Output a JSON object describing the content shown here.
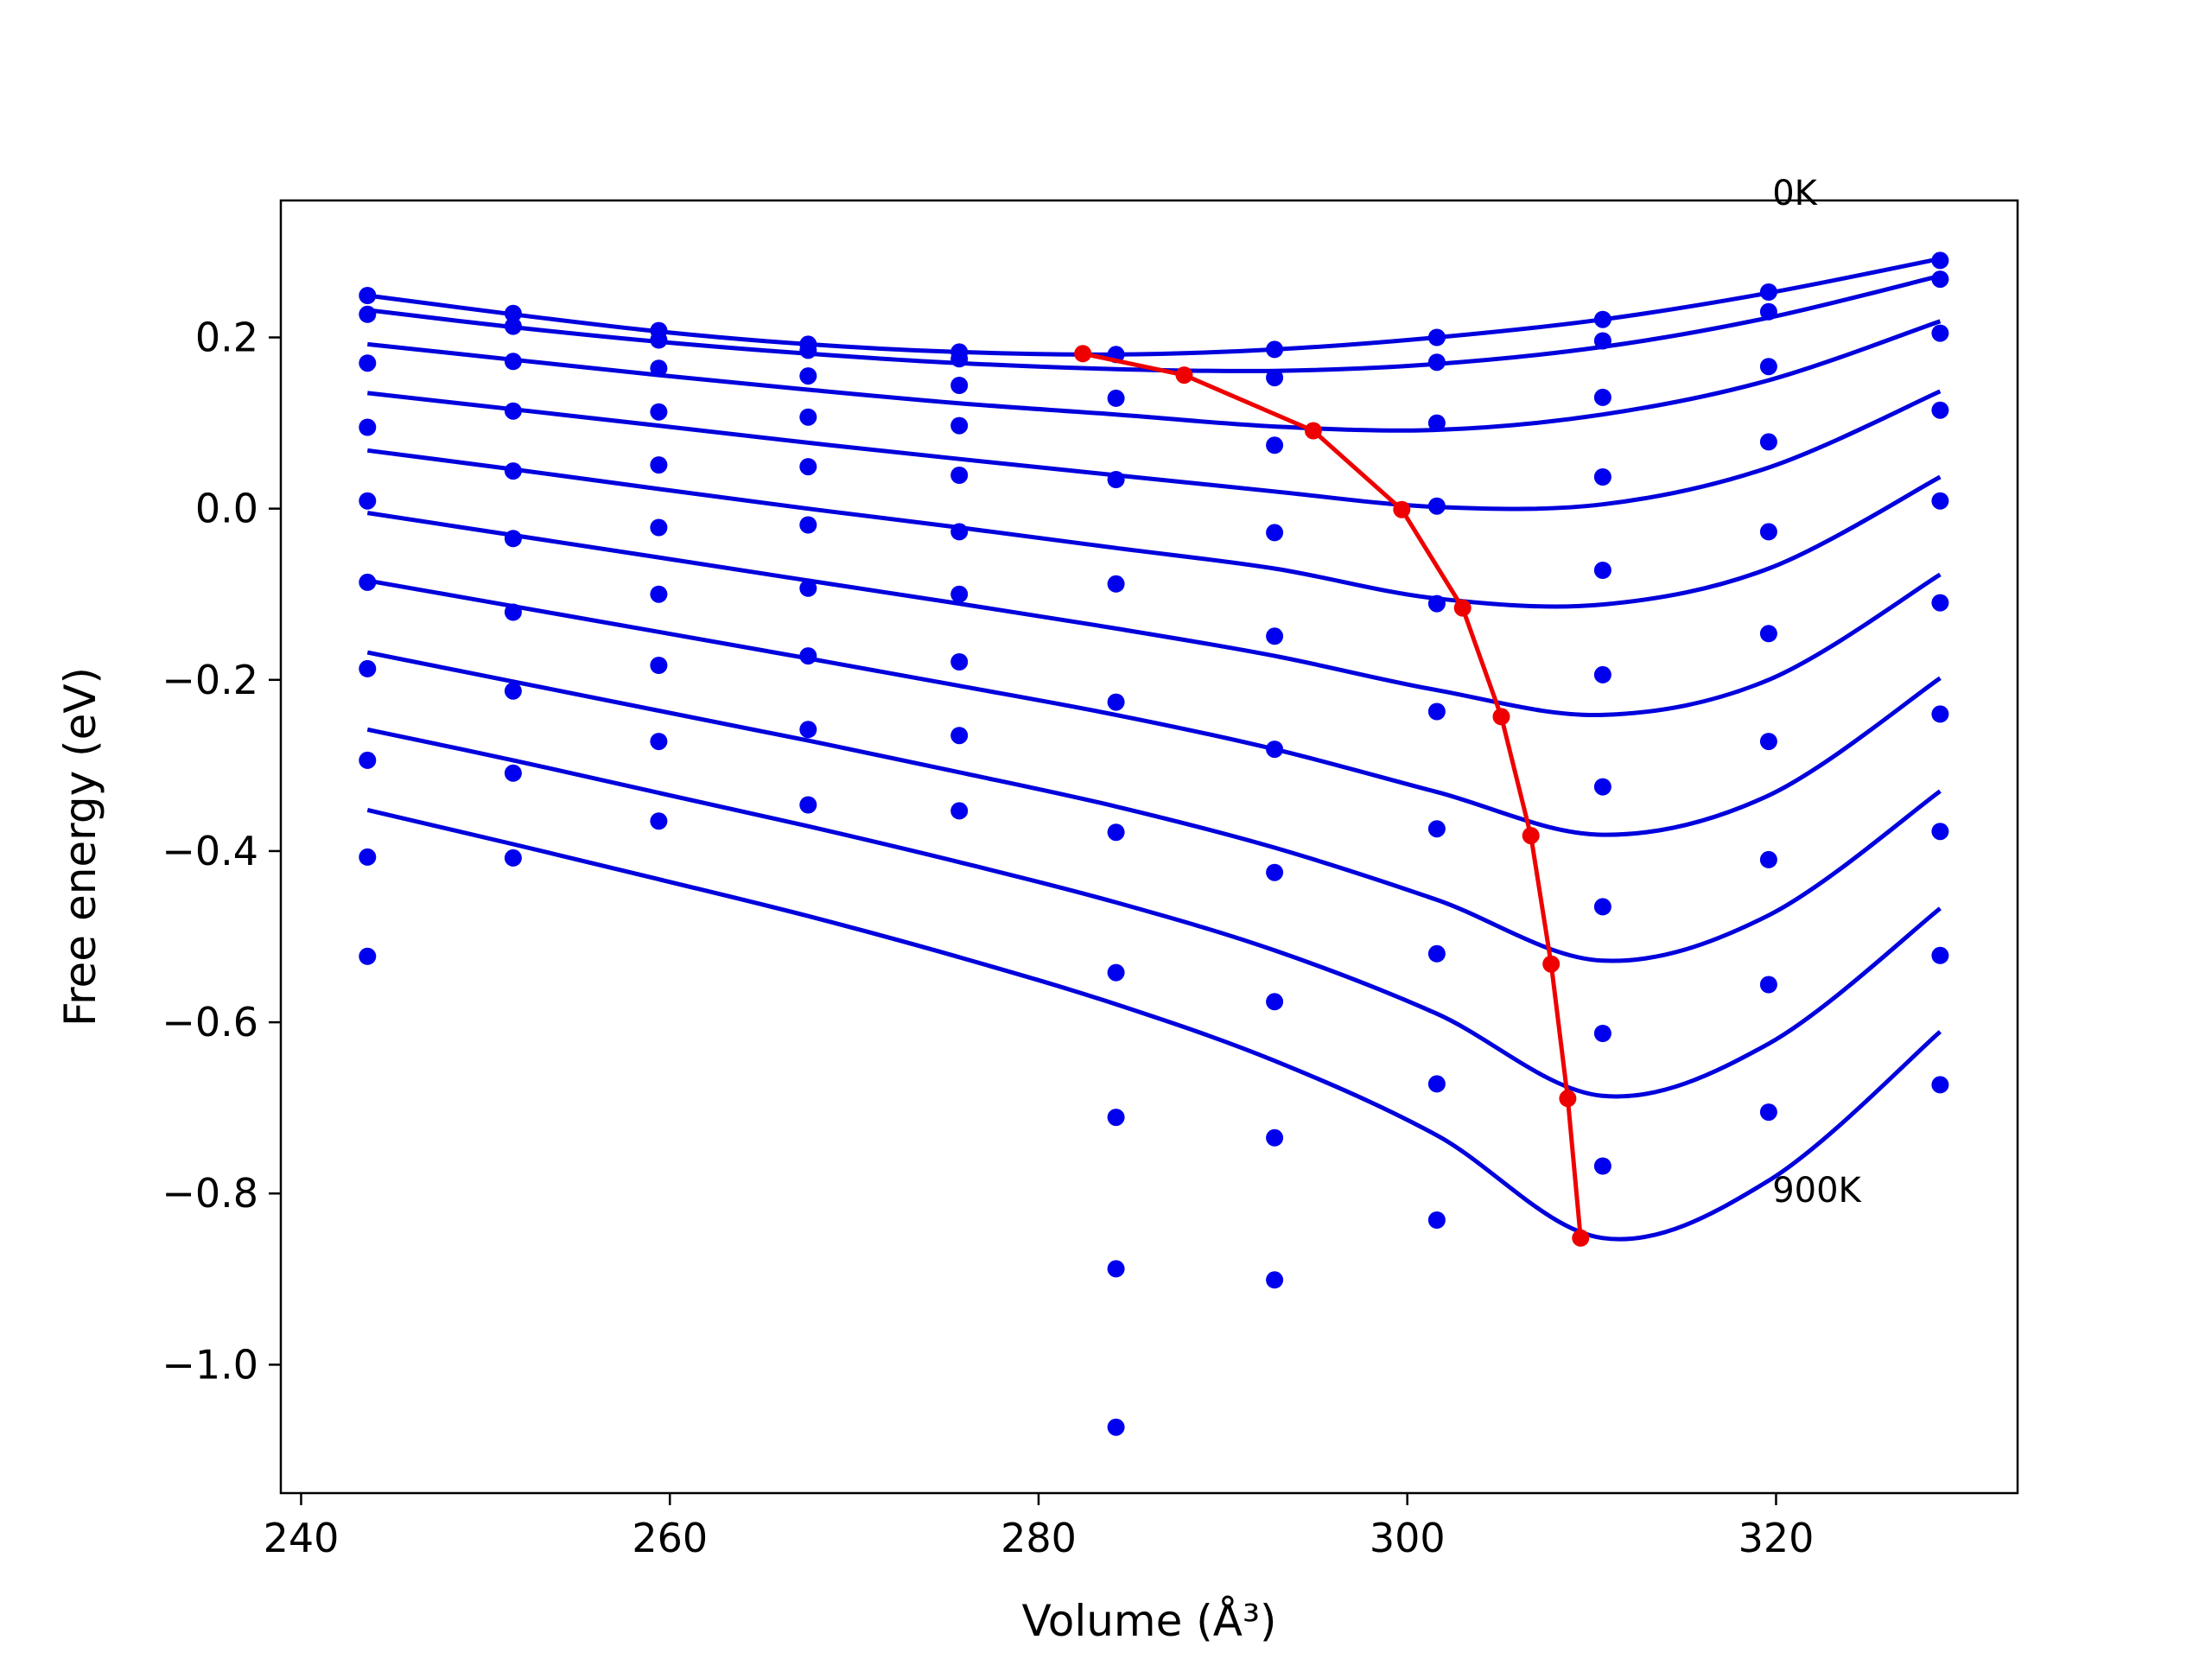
{
  "chart_data": {
    "type": "scatter",
    "xlabel": "Volume (Å³)",
    "ylabel": "Free energy (eV)",
    "xlim": [
      238.9,
      333.1
    ],
    "ylim": [
      -1.15,
      0.36
    ],
    "xticks": [
      {
        "value": 240,
        "label": "240"
      },
      {
        "value": 260,
        "label": "260"
      },
      {
        "value": 280,
        "label": "280"
      },
      {
        "value": 300,
        "label": "300"
      },
      {
        "value": 320,
        "label": "320"
      }
    ],
    "yticks": [
      {
        "value": 0.2,
        "label": "0.2"
      },
      {
        "value": 0.0,
        "label": "0.0"
      },
      {
        "value": -0.2,
        "label": "−0.2"
      },
      {
        "value": -0.4,
        "label": "−0.4"
      },
      {
        "value": -0.6,
        "label": "−0.6"
      },
      {
        "value": -0.8,
        "label": "−0.8"
      },
      {
        "value": -1.0,
        "label": "−1.0"
      }
    ],
    "grid": false,
    "colors": {
      "points": "#0000ee",
      "fits": "#0000dd",
      "minima": "#ee0000"
    },
    "annotations": [
      {
        "text": "0K",
        "x": 319.8,
        "y": 0.355
      },
      {
        "text": "900K",
        "x": 319.8,
        "y": -0.81
      }
    ],
    "scatter_points": [
      [
        243.6,
        0.249
      ],
      [
        243.6,
        0.227
      ],
      [
        243.6,
        0.17
      ],
      [
        243.6,
        0.095
      ],
      [
        243.6,
        0.009
      ],
      [
        243.6,
        -0.086
      ],
      [
        243.6,
        -0.187
      ],
      [
        243.6,
        -0.294
      ],
      [
        243.6,
        -0.407
      ],
      [
        243.6,
        -0.523
      ],
      [
        251.5,
        0.228
      ],
      [
        251.5,
        0.213
      ],
      [
        251.5,
        0.172
      ],
      [
        251.5,
        0.114
      ],
      [
        251.5,
        0.044
      ],
      [
        251.5,
        -0.035
      ],
      [
        251.5,
        -0.121
      ],
      [
        251.5,
        -0.213
      ],
      [
        251.5,
        -0.309
      ],
      [
        251.5,
        -0.408
      ],
      [
        259.4,
        0.208
      ],
      [
        259.4,
        0.197
      ],
      [
        259.4,
        0.164
      ],
      [
        259.4,
        0.113
      ],
      [
        259.4,
        0.051
      ],
      [
        259.4,
        -0.022
      ],
      [
        259.4,
        -0.1
      ],
      [
        259.4,
        -0.183
      ],
      [
        259.4,
        -0.272
      ],
      [
        259.4,
        -0.365
      ],
      [
        267.5,
        0.192
      ],
      [
        267.5,
        0.185
      ],
      [
        267.5,
        0.155
      ],
      [
        267.5,
        0.107
      ],
      [
        267.5,
        0.049
      ],
      [
        267.5,
        -0.019
      ],
      [
        267.5,
        -0.093
      ],
      [
        267.5,
        -0.172
      ],
      [
        267.5,
        -0.258
      ],
      [
        267.5,
        -0.346
      ],
      [
        275.7,
        0.183
      ],
      [
        275.7,
        0.175
      ],
      [
        275.7,
        0.144
      ],
      [
        275.7,
        0.097
      ],
      [
        275.7,
        0.039
      ],
      [
        275.7,
        -0.027
      ],
      [
        275.7,
        -0.1
      ],
      [
        275.7,
        -0.179
      ],
      [
        275.7,
        -0.265
      ],
      [
        275.7,
        -0.353
      ],
      [
        284.2,
        0.18
      ],
      [
        284.2,
        0.129
      ],
      [
        284.2,
        0.034
      ],
      [
        284.2,
        -0.088
      ],
      [
        284.2,
        -0.226
      ],
      [
        284.2,
        -0.378
      ],
      [
        284.2,
        -0.542
      ],
      [
        284.2,
        -0.711
      ],
      [
        284.2,
        -0.888
      ],
      [
        284.2,
        -1.073
      ],
      [
        292.8,
        0.186
      ],
      [
        292.8,
        0.153
      ],
      [
        292.8,
        0.074
      ],
      [
        292.8,
        -0.028
      ],
      [
        292.8,
        -0.149
      ],
      [
        292.8,
        -0.281
      ],
      [
        292.8,
        -0.425
      ],
      [
        292.8,
        -0.576
      ],
      [
        292.8,
        -0.735
      ],
      [
        292.8,
        -0.901
      ],
      [
        301.6,
        0.2
      ],
      [
        301.6,
        0.171
      ],
      [
        301.6,
        0.1
      ],
      [
        301.6,
        0.003
      ],
      [
        301.6,
        -0.111
      ],
      [
        301.6,
        -0.237
      ],
      [
        301.6,
        -0.374
      ],
      [
        301.6,
        -0.52
      ],
      [
        301.6,
        -0.672
      ],
      [
        301.6,
        -0.831
      ],
      [
        310.6,
        0.221
      ],
      [
        310.6,
        0.196
      ],
      [
        310.6,
        0.13
      ],
      [
        310.6,
        0.037
      ],
      [
        310.6,
        -0.072
      ],
      [
        310.6,
        -0.194
      ],
      [
        310.6,
        -0.325
      ],
      [
        310.6,
        -0.465
      ],
      [
        310.6,
        -0.613
      ],
      [
        310.6,
        -0.768
      ],
      [
        319.6,
        0.253
      ],
      [
        319.6,
        0.23
      ],
      [
        319.6,
        0.166
      ],
      [
        319.6,
        0.078
      ],
      [
        319.6,
        -0.027
      ],
      [
        319.6,
        -0.146
      ],
      [
        319.6,
        -0.272
      ],
      [
        319.6,
        -0.41
      ],
      [
        319.6,
        -0.556
      ],
      [
        319.6,
        -0.705
      ],
      [
        328.9,
        0.29
      ],
      [
        328.9,
        0.268
      ],
      [
        328.9,
        0.205
      ],
      [
        328.9,
        0.115
      ],
      [
        328.9,
        0.009
      ],
      [
        328.9,
        -0.11
      ],
      [
        328.9,
        -0.24
      ],
      [
        328.9,
        -0.377
      ],
      [
        328.9,
        -0.522
      ],
      [
        328.9,
        -0.673
      ]
    ],
    "fit_curves": [
      [
        [
          243.6,
          0.249
        ],
        [
          251.5,
          0.227
        ],
        [
          259.4,
          0.207
        ],
        [
          267.5,
          0.192
        ],
        [
          275.7,
          0.183
        ],
        [
          284.2,
          0.18
        ],
        [
          292.8,
          0.186
        ],
        [
          301.6,
          0.2
        ],
        [
          310.6,
          0.221
        ],
        [
          319.6,
          0.252
        ],
        [
          328.9,
          0.292
        ]
      ],
      [
        [
          243.6,
          0.232
        ],
        [
          251.5,
          0.212
        ],
        [
          259.4,
          0.195
        ],
        [
          267.5,
          0.181
        ],
        [
          275.7,
          0.17
        ],
        [
          284.2,
          0.163
        ],
        [
          292.8,
          0.161
        ],
        [
          301.6,
          0.169
        ],
        [
          310.6,
          0.189
        ],
        [
          319.6,
          0.223
        ],
        [
          328.9,
          0.272
        ]
      ],
      [
        [
          243.6,
          0.192
        ],
        [
          251.5,
          0.174
        ],
        [
          259.4,
          0.156
        ],
        [
          267.5,
          0.139
        ],
        [
          275.7,
          0.123
        ],
        [
          284.2,
          0.11
        ],
        [
          292.8,
          0.096
        ],
        [
          301.6,
          0.092
        ],
        [
          310.6,
          0.11
        ],
        [
          319.6,
          0.15
        ],
        [
          328.9,
          0.219
        ]
      ],
      [
        [
          243.6,
          0.135
        ],
        [
          251.5,
          0.116
        ],
        [
          259.4,
          0.097
        ],
        [
          267.5,
          0.077
        ],
        [
          275.7,
          0.058
        ],
        [
          284.2,
          0.039
        ],
        [
          292.8,
          0.02
        ],
        [
          301.6,
          0.002
        ],
        [
          310.6,
          0.005
        ],
        [
          319.6,
          0.048
        ],
        [
          328.9,
          0.137
        ]
      ],
      [
        [
          243.6,
          0.068
        ],
        [
          251.5,
          0.046
        ],
        [
          259.4,
          0.023
        ],
        [
          267.5,
          0.0
        ],
        [
          275.7,
          -0.022
        ],
        [
          284.2,
          -0.046
        ],
        [
          292.8,
          -0.07
        ],
        [
          301.6,
          -0.105
        ],
        [
          310.6,
          -0.112
        ],
        [
          319.6,
          -0.07
        ],
        [
          328.9,
          0.037
        ]
      ],
      [
        [
          243.6,
          -0.005
        ],
        [
          251.5,
          -0.031
        ],
        [
          259.4,
          -0.057
        ],
        [
          267.5,
          -0.084
        ],
        [
          275.7,
          -0.111
        ],
        [
          284.2,
          -0.14
        ],
        [
          292.8,
          -0.172
        ],
        [
          301.6,
          -0.212
        ],
        [
          310.6,
          -0.241
        ],
        [
          319.6,
          -0.2
        ],
        [
          328.9,
          -0.077
        ]
      ],
      [
        [
          243.6,
          -0.084
        ],
        [
          251.5,
          -0.114
        ],
        [
          259.4,
          -0.144
        ],
        [
          267.5,
          -0.175
        ],
        [
          275.7,
          -0.207
        ],
        [
          284.2,
          -0.241
        ],
        [
          292.8,
          -0.281
        ],
        [
          301.6,
          -0.331
        ],
        [
          310.6,
          -0.381
        ],
        [
          319.6,
          -0.335
        ],
        [
          328.9,
          -0.198
        ]
      ],
      [
        [
          243.6,
          -0.168
        ],
        [
          251.5,
          -0.202
        ],
        [
          259.4,
          -0.236
        ],
        [
          267.5,
          -0.271
        ],
        [
          275.7,
          -0.308
        ],
        [
          284.2,
          -0.348
        ],
        [
          292.8,
          -0.396
        ],
        [
          301.6,
          -0.457
        ],
        [
          310.6,
          -0.528
        ],
        [
          319.6,
          -0.475
        ],
        [
          328.9,
          -0.33
        ]
      ],
      [
        [
          243.6,
          -0.258
        ],
        [
          251.5,
          -0.294
        ],
        [
          259.4,
          -0.332
        ],
        [
          267.5,
          -0.371
        ],
        [
          275.7,
          -0.413
        ],
        [
          284.2,
          -0.46
        ],
        [
          292.8,
          -0.516
        ],
        [
          301.6,
          -0.59
        ],
        [
          310.6,
          -0.686
        ],
        [
          319.6,
          -0.625
        ],
        [
          328.9,
          -0.467
        ]
      ],
      [
        [
          243.6,
          -0.352
        ],
        [
          251.5,
          -0.392
        ],
        [
          259.4,
          -0.433
        ],
        [
          267.5,
          -0.476
        ],
        [
          275.7,
          -0.524
        ],
        [
          284.2,
          -0.579
        ],
        [
          292.8,
          -0.645
        ],
        [
          301.6,
          -0.732
        ],
        [
          310.6,
          -0.852
        ],
        [
          319.6,
          -0.785
        ],
        [
          328.9,
          -0.611
        ]
      ]
    ],
    "minimum_path": [
      [
        282.4,
        0.181
      ],
      [
        287.9,
        0.156
      ],
      [
        294.9,
        0.091
      ],
      [
        299.7,
        -0.001
      ],
      [
        303.0,
        -0.116
      ],
      [
        305.1,
        -0.243
      ],
      [
        306.7,
        -0.382
      ],
      [
        307.8,
        -0.532
      ],
      [
        308.7,
        -0.689
      ],
      [
        309.4,
        -0.852
      ]
    ]
  }
}
